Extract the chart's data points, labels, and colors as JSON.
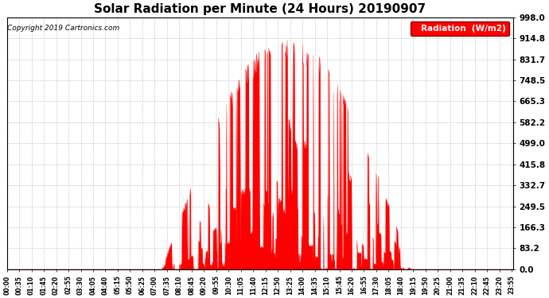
{
  "title": "Solar Radiation per Minute (24 Hours) 20190907",
  "copyright_text": "Copyright 2019 Cartronics.com",
  "legend_label": "Radiation  (W/m2)",
  "ytick_labels": [
    "0.0",
    "83.2",
    "166.3",
    "249.5",
    "332.7",
    "415.8",
    "499.0",
    "582.2",
    "665.3",
    "748.5",
    "831.7",
    "914.8",
    "998.0"
  ],
  "ytick_values": [
    0.0,
    83.2,
    166.3,
    249.5,
    332.7,
    415.8,
    499.0,
    582.2,
    665.3,
    748.5,
    831.7,
    914.8,
    998.0
  ],
  "ymax": 998.0,
  "ymin": 0.0,
  "fill_color": "#FF0000",
  "line_color": "#FF0000",
  "background_color": "#FFFFFF",
  "grid_color": "#C0C0C0",
  "title_fontsize": 11,
  "axis_fontsize": 7.5,
  "legend_bg": "#FF0000",
  "legend_text_color": "#FFFFFF",
  "xtick_step": 35,
  "total_minutes": 1440
}
